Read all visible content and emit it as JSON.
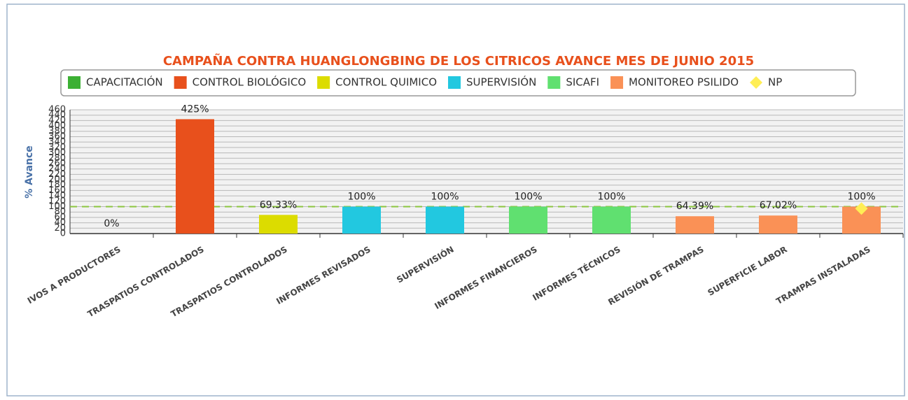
{
  "chart_data": {
    "type": "bar",
    "title": "CAMPAÑA CONTRA HUANGLONGBING DE LOS CITRICOS AVANCE MES DE JUNIO 2015",
    "y_label": "% Avance",
    "categories": [
      "IVOS A PRODUCTORES",
      "TRASPATIOS CONTROLADOS",
      "TRASPATIOS CONTROLADOS",
      "INFORMES REVISADOS",
      "SUPERVISIÓN",
      "INFORMES FINANCIEROS",
      "INFORMES TÉCNICOS",
      "REVISIÓN DE TRAMPAS",
      "SUPERFICIE LABOR",
      "TRAMPAS INSTALADAS"
    ],
    "series": [
      {
        "name": "CAPACITACIÓN",
        "color": "#3cb034",
        "values": [
          0,
          null,
          null,
          null,
          null,
          null,
          null,
          null,
          null,
          null
        ],
        "value_labels": [
          "0%",
          null,
          null,
          null,
          null,
          null,
          null,
          null,
          null,
          null
        ]
      },
      {
        "name": "CONTROL BIOLÓGICO",
        "color": "#e8501c",
        "values": [
          null,
          425,
          null,
          null,
          null,
          null,
          null,
          null,
          null,
          null
        ],
        "value_labels": [
          null,
          "425%",
          null,
          null,
          null,
          null,
          null,
          null,
          null,
          null
        ]
      },
      {
        "name": "CONTROL QUIMICO",
        "color": "#dcdc00",
        "values": [
          null,
          null,
          69.33,
          null,
          null,
          null,
          null,
          null,
          null,
          null
        ],
        "value_labels": [
          null,
          null,
          "69.33%",
          null,
          null,
          null,
          null,
          null,
          null,
          null
        ]
      },
      {
        "name": "SUPERVISIÓN",
        "color": "#22c8e0",
        "values": [
          null,
          null,
          null,
          100,
          100,
          null,
          null,
          null,
          null,
          null
        ],
        "value_labels": [
          null,
          null,
          null,
          "100%",
          "100%",
          null,
          null,
          null,
          null,
          null
        ]
      },
      {
        "name": "SICAFI",
        "color": "#60e070",
        "values": [
          null,
          null,
          null,
          null,
          null,
          100,
          100,
          null,
          null,
          null
        ],
        "value_labels": [
          null,
          null,
          null,
          null,
          null,
          "100%",
          "100%",
          null,
          null,
          null
        ]
      },
      {
        "name": "MONITOREO PSILIDO",
        "color": "#fa9156",
        "values": [
          null,
          null,
          null,
          null,
          null,
          null,
          null,
          64.39,
          67.02,
          100
        ],
        "value_labels": [
          null,
          null,
          null,
          null,
          null,
          null,
          null,
          "64.39%",
          "67.02%",
          "100%"
        ]
      },
      {
        "name": "NP",
        "color": "#ffee55",
        "type": "scatter",
        "marker": "diamond",
        "values": [
          null,
          null,
          null,
          null,
          null,
          null,
          null,
          null,
          null,
          93
        ]
      }
    ],
    "reference_line": 100,
    "reference_color": "#8cc63f",
    "ylim": [
      0,
      460
    ],
    "yticks": [
      0,
      20,
      40,
      60,
      80,
      100,
      120,
      140,
      160,
      180,
      200,
      220,
      240,
      260,
      280,
      300,
      320,
      340,
      360,
      380,
      400,
      420,
      440,
      460
    ],
    "grid": true,
    "legend": "top"
  }
}
